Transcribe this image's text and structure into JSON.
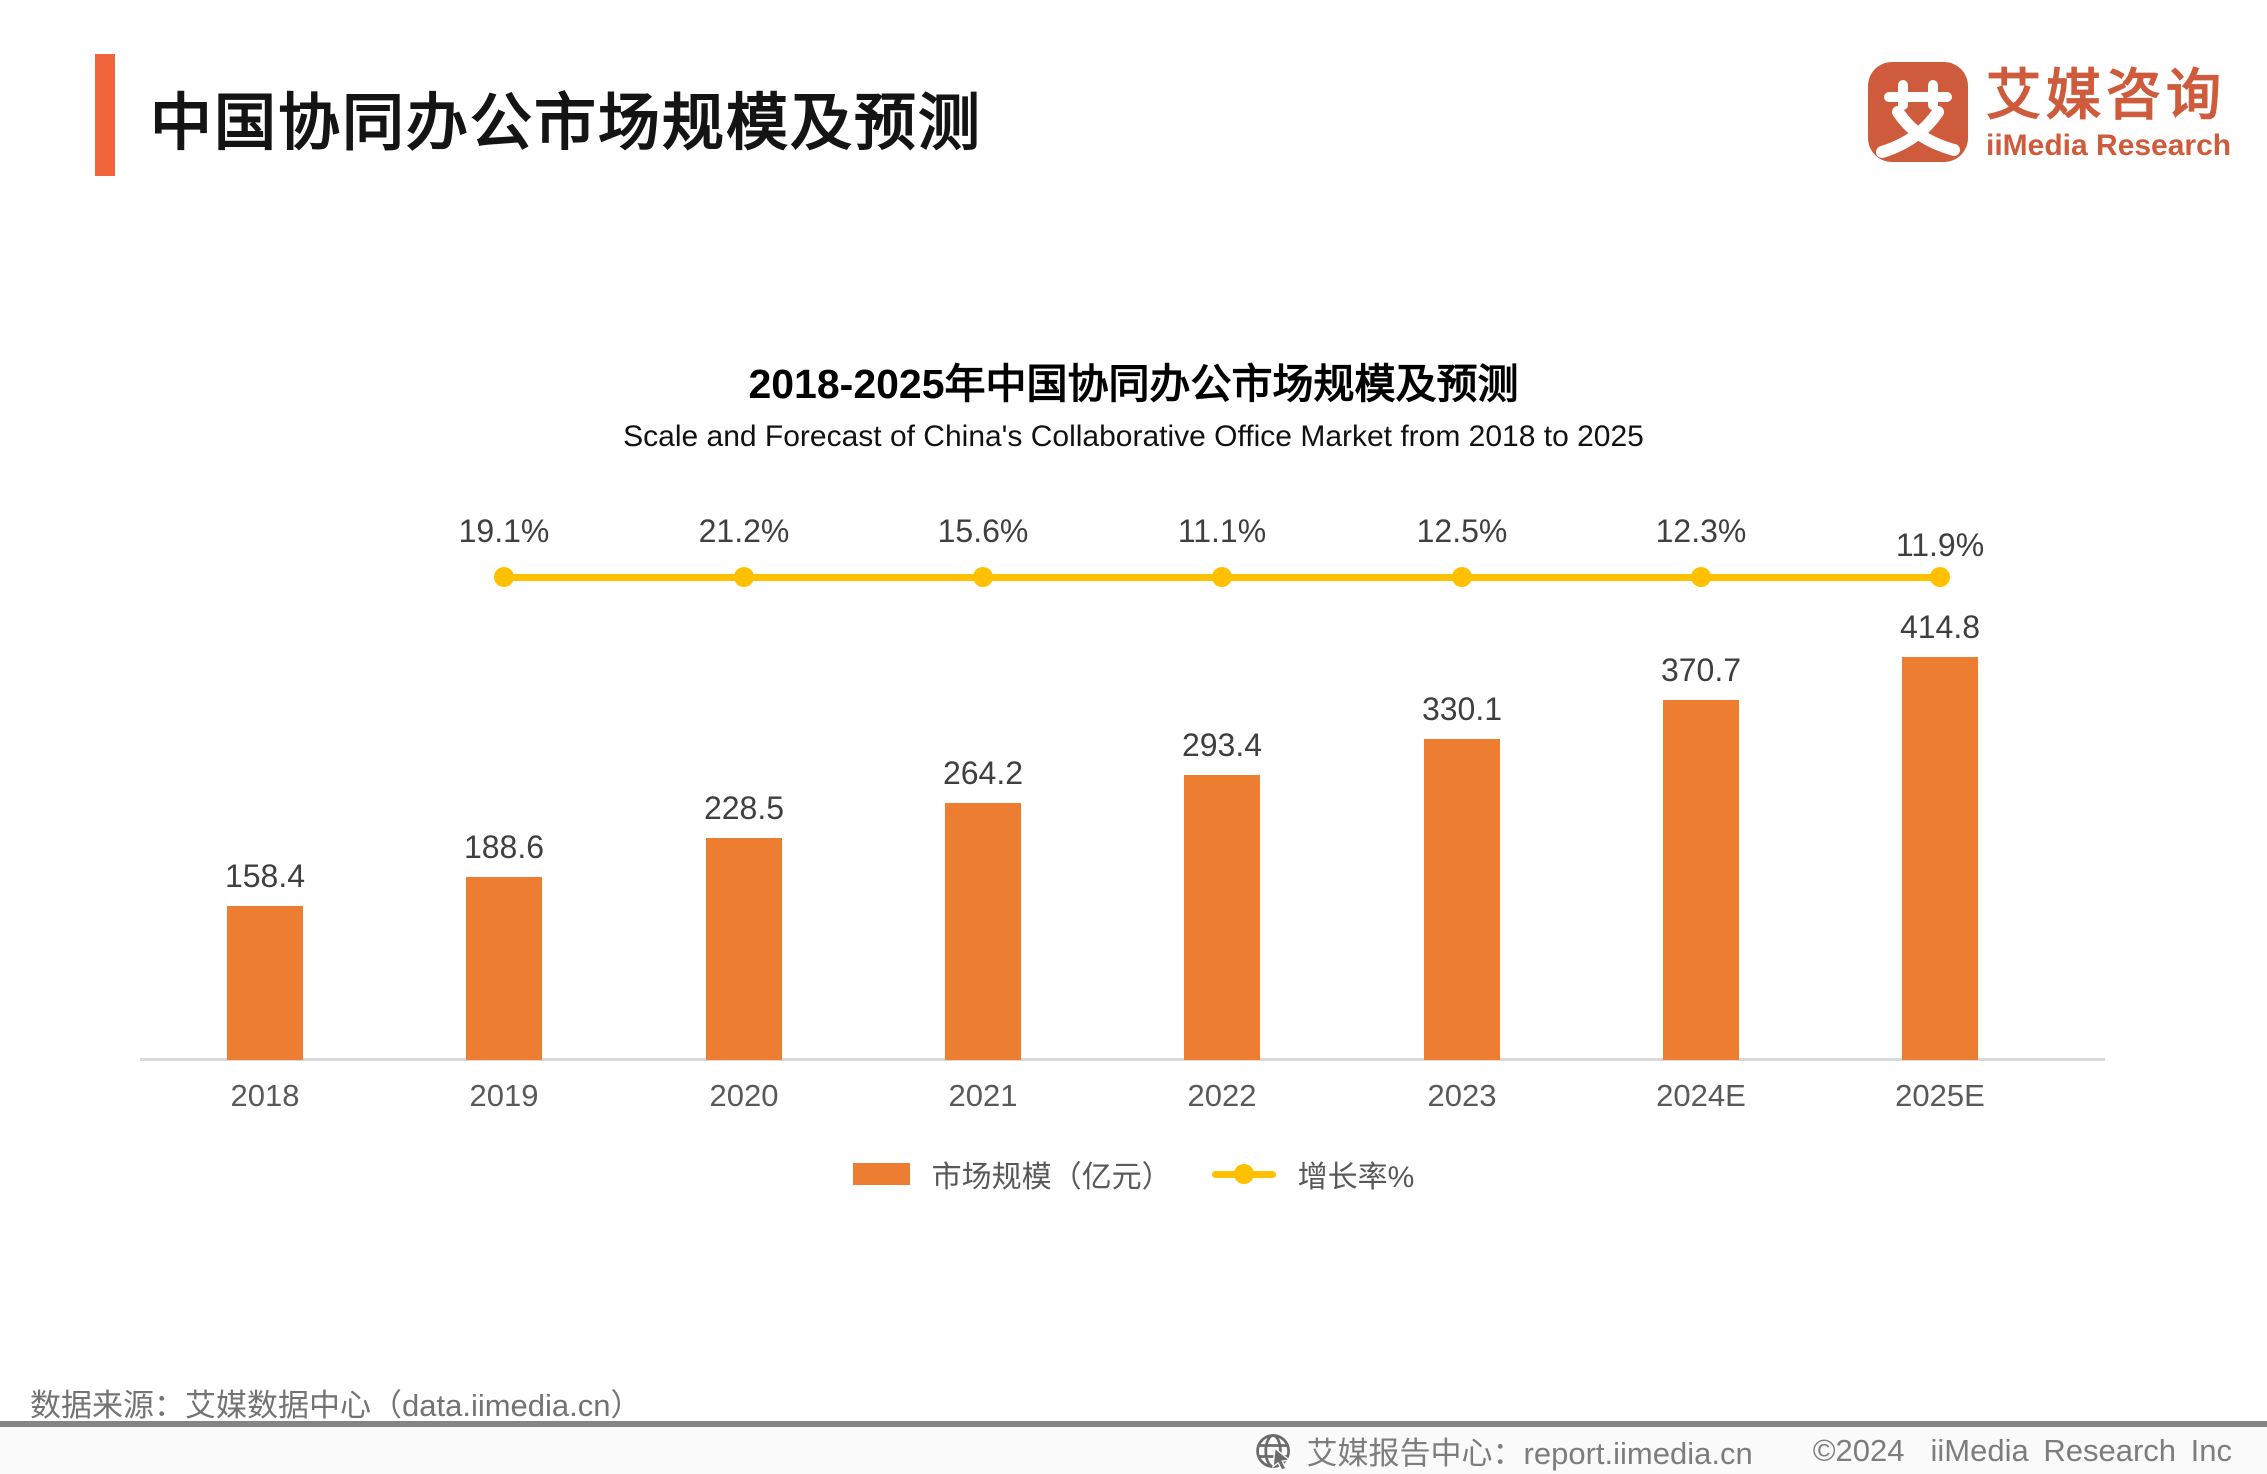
{
  "header": {
    "title": "中国协同办公市场规模及预测",
    "accent_color": "#F0653C",
    "logo": {
      "icon_glyph": "艾",
      "brand_cn": "艾媒咨询",
      "brand_en": "iiMedia Research",
      "brand_color": "#CE5B3B"
    }
  },
  "chart_data": {
    "type": "bar",
    "title": "2018-2025年中国协同办公市场规模及预测",
    "subtitle": "Scale and Forecast of China's Collaborative Office Market from 2018 to 2025",
    "categories": [
      "2018",
      "2019",
      "2020",
      "2021",
      "2022",
      "2023",
      "2024E",
      "2025E"
    ],
    "series": [
      {
        "name": "市场规模（亿元）",
        "type": "bar",
        "color": "#ED7D31",
        "values": [
          158.4,
          188.6,
          228.5,
          264.2,
          293.4,
          330.1,
          370.7,
          414.8
        ]
      },
      {
        "name": "增长率%",
        "type": "line",
        "color": "#FFC000",
        "categories": [
          "2019",
          "2020",
          "2021",
          "2022",
          "2023",
          "2024E",
          "2025E"
        ],
        "values": [
          19.1,
          21.2,
          15.6,
          11.1,
          12.5,
          12.3,
          11.9
        ],
        "unit": "%"
      }
    ],
    "value_labels": true,
    "grid": false,
    "legend_position": "bottom",
    "ylim": [
      0,
      430
    ]
  },
  "footer": {
    "source": "数据来源：艾媒数据中心（data.iimedia.cn）",
    "report_center": "艾媒报告中心：report.iimedia.cn",
    "copyright": "©2024",
    "company": "iiMedia Research Inc"
  }
}
